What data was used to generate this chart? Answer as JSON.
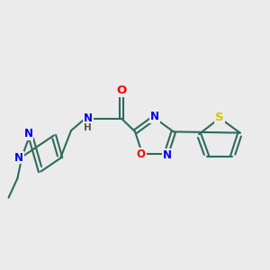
{
  "bg_color": "#ebebeb",
  "bond_color": "#2d6b5a",
  "bond_width": 1.5,
  "atom_colors": {
    "N": "#0000ee",
    "O": "#ff0000",
    "S": "#cccc00",
    "C": "#2d6b5a",
    "H": "#555555"
  },
  "font_size": 8.5,
  "figsize": [
    3.0,
    3.0
  ],
  "dpi": 100
}
